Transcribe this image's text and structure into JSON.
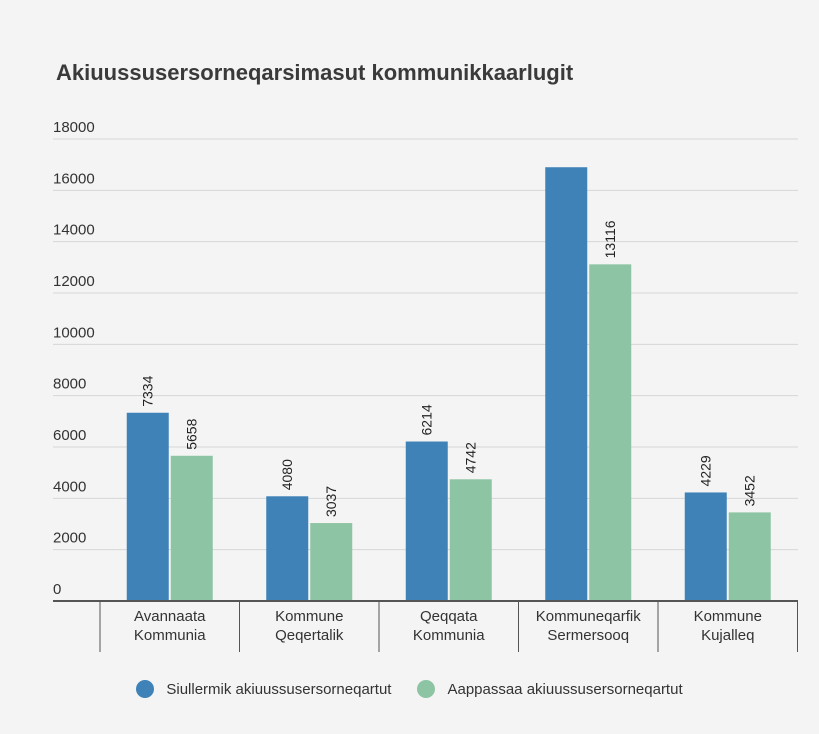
{
  "chart_data": {
    "type": "bar",
    "title": "Akiuussusersorneqarsimasut kommunikkaarlugit",
    "xlabel": "",
    "ylabel": "",
    "categories": [
      [
        "Avannaata",
        "Kommunia"
      ],
      [
        "Kommune",
        "Qeqertalik"
      ],
      [
        "Qeqqata",
        "Kommunia"
      ],
      [
        "Kommuneqarfik",
        "Sermersooq"
      ],
      [
        "Kommune",
        "Kujalleq"
      ]
    ],
    "series": [
      {
        "name": "Siullermik akiuussusersorneqartut",
        "color": "#3f82b8",
        "values": [
          7334,
          4080,
          6214,
          16900,
          4229
        ],
        "labels": [
          "7334",
          "4080",
          "6214",
          "",
          "4229"
        ]
      },
      {
        "name": "Aappassaa akiuussusersorneqartut",
        "color": "#8dc4a3",
        "values": [
          5658,
          3037,
          4742,
          13116,
          3452
        ],
        "labels": [
          "5658",
          "3037",
          "4742",
          "13116",
          "3452"
        ]
      }
    ],
    "ylim": [
      0,
      18000
    ],
    "yticks": [
      "0",
      "2000",
      "4000",
      "6000",
      "8000",
      "10000",
      "12000",
      "14000",
      "16000",
      "18000"
    ],
    "grid": true,
    "legend_position": "bottom"
  }
}
